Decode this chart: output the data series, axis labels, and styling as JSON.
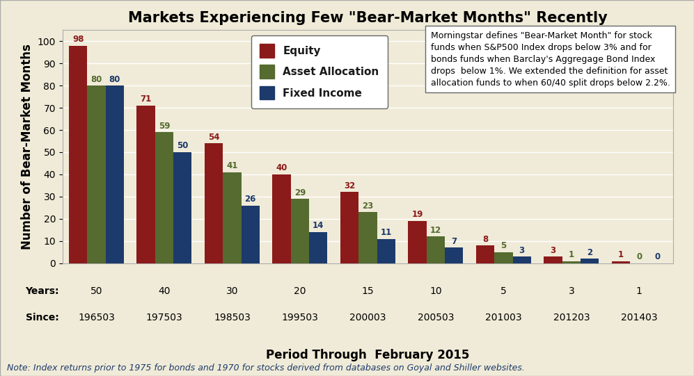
{
  "title": "Markets Experiencing Few \"Bear-Market Months\" Recently",
  "xlabel": "Period Through  February 2015",
  "ylabel": "Number of Bear-Market Months",
  "years_labels": [
    "50",
    "40",
    "30",
    "20",
    "15",
    "10",
    "5",
    "3",
    "1"
  ],
  "since_labels": [
    "196503",
    "197503",
    "198503",
    "199503",
    "200003",
    "200503",
    "201003",
    "201203",
    "201403"
  ],
  "equity": [
    98,
    71,
    54,
    40,
    32,
    19,
    8,
    3,
    1
  ],
  "asset_alloc": [
    80,
    59,
    41,
    29,
    23,
    12,
    5,
    1,
    0
  ],
  "fixed_income": [
    80,
    50,
    26,
    14,
    11,
    7,
    3,
    2,
    0
  ],
  "equity_color": "#8B1A1A",
  "asset_color": "#556B2F",
  "fixed_color": "#1C3A6B",
  "bg_color": "#F0EBD8",
  "plot_bg_color": "#F0EBD8",
  "ylim": [
    0,
    105
  ],
  "yticks": [
    0,
    10,
    20,
    30,
    40,
    50,
    60,
    70,
    80,
    90,
    100
  ],
  "legend_labels": [
    "Equity",
    "Asset Allocation",
    "Fixed Income"
  ],
  "note_text": "Note: Index returns prior to 1975 for bonds and 1970 for stocks derived from databases on Goyal and Shiller websites.",
  "annotation_text": "Morningstar defines \"Bear-Market Month\" for stock\nfunds when S&P500 Index drops below 3% and for\nbonds funds when Barclay's Aggregage Bond Index\ndrops  below 1%. We extended the definition for asset\nallocation funds to when 60/40 split drops below 2.2%.",
  "bar_width": 0.27,
  "title_fontsize": 15,
  "axis_label_fontsize": 12,
  "tick_fontsize": 10,
  "note_fontsize": 9,
  "value_fontsize": 8.5
}
